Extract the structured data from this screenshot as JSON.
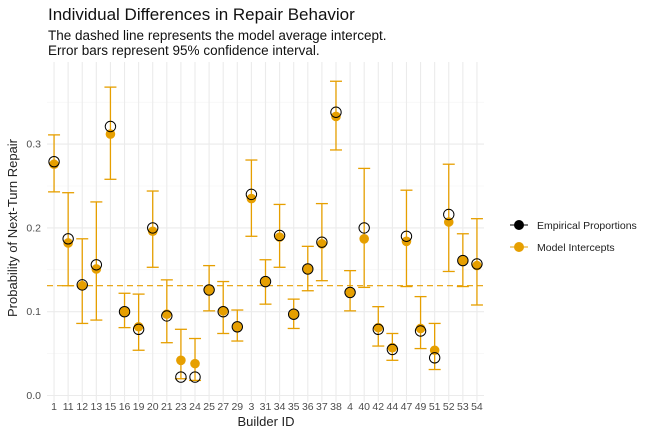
{
  "chart_data": {
    "type": "scatter",
    "title": "Individual Differences in Repair Behavior",
    "subtitle_lines": [
      "The dashed line represents the model average intercept.",
      "Error bars represent 95% confidence interval."
    ],
    "xlabel": "Builder ID",
    "ylabel": "Probability of Next-Turn Repair",
    "ylim": [
      0,
      0.39
    ],
    "yticks": [
      0.0,
      0.1,
      0.2,
      0.3
    ],
    "ytick_labels": [
      "0.0",
      "0.1",
      "0.2",
      "0.3"
    ],
    "grid": true,
    "legend_position": "right",
    "reference_line": {
      "value": 0.131,
      "style": "dashed"
    },
    "colors": {
      "model": "#E69F00",
      "empirical": "#000000"
    },
    "series": [
      {
        "name": "Empirical Proportions"
      },
      {
        "name": "Model Intercepts"
      }
    ],
    "categories": [
      "1",
      "11",
      "12",
      "13",
      "15",
      "16",
      "19",
      "20",
      "21",
      "23",
      "24",
      "25",
      "27",
      "29",
      "3",
      "31",
      "34",
      "35",
      "36",
      "37",
      "38",
      "4",
      "40",
      "42",
      "44",
      "47",
      "49",
      "51",
      "52",
      "53",
      "54"
    ],
    "empirical": [
      0.279,
      0.187,
      0.132,
      0.156,
      0.321,
      0.1,
      0.079,
      0.2,
      0.095,
      0.022,
      0.022,
      0.126,
      0.1,
      0.082,
      0.24,
      0.136,
      0.191,
      0.097,
      0.151,
      0.183,
      0.338,
      0.123,
      0.2,
      0.079,
      0.055,
      0.19,
      0.077,
      0.045,
      0.216,
      0.161,
      0.157
    ],
    "model": [
      0.276,
      0.182,
      0.131,
      0.151,
      0.312,
      0.1,
      0.082,
      0.196,
      0.097,
      0.042,
      0.038,
      0.126,
      0.101,
      0.082,
      0.235,
      0.136,
      0.189,
      0.097,
      0.151,
      0.181,
      0.333,
      0.123,
      0.187,
      0.081,
      0.057,
      0.184,
      0.08,
      0.054,
      0.207,
      0.161,
      0.155
    ],
    "ci_lower": [
      0.243,
      0.131,
      0.086,
      0.09,
      0.258,
      0.081,
      0.054,
      0.153,
      0.063,
      0.02,
      0.018,
      0.101,
      0.074,
      0.065,
      0.19,
      0.109,
      0.153,
      0.08,
      0.125,
      0.137,
      0.293,
      0.101,
      0.129,
      0.059,
      0.042,
      0.13,
      0.056,
      0.031,
      0.148,
      0.13,
      0.108
    ],
    "ci_upper": [
      0.311,
      0.242,
      0.187,
      0.231,
      0.368,
      0.122,
      0.121,
      0.244,
      0.138,
      0.079,
      0.068,
      0.155,
      0.136,
      0.102,
      0.281,
      0.162,
      0.228,
      0.115,
      0.178,
      0.229,
      0.375,
      0.149,
      0.271,
      0.106,
      0.074,
      0.245,
      0.118,
      0.086,
      0.276,
      0.193,
      0.211
    ]
  }
}
